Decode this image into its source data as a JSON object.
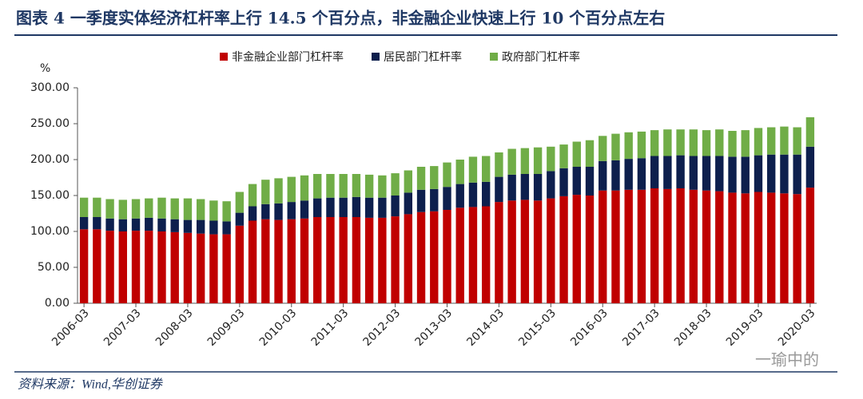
{
  "chart_data": {
    "type": "bar",
    "stacked": true,
    "title": "图表 4 一季度实体经济杠杆率上行 14.5 个百分点，非金融企业快速上行 10 个百分点左右",
    "y_label": "%",
    "source": "资料来源：Wind,华创证券",
    "watermark": "一瑜中的",
    "categories": [
      "2006-03",
      null,
      null,
      null,
      "2007-03",
      null,
      null,
      null,
      "2008-03",
      null,
      null,
      null,
      "2009-03",
      null,
      null,
      null,
      "2010-03",
      null,
      null,
      null,
      "2011-03",
      null,
      null,
      null,
      "2012-03",
      null,
      null,
      null,
      "2013-03",
      null,
      null,
      null,
      "2014-03",
      null,
      null,
      null,
      "2015-03",
      null,
      null,
      null,
      "2016-03",
      null,
      null,
      null,
      "2017-03",
      null,
      null,
      null,
      "2018-03",
      null,
      null,
      null,
      "2019-03",
      null,
      null,
      null,
      "2020-03"
    ],
    "series": [
      {
        "name": "非金融企业部门杠杆率",
        "color": "#c00000",
        "values": [
          103,
          103,
          101,
          100,
          101,
          101,
          100,
          99,
          98,
          97,
          96,
          96,
          108,
          115,
          117,
          116,
          117,
          118,
          120,
          120,
          120,
          120,
          119,
          119,
          121,
          124,
          127,
          128,
          130,
          133,
          134,
          135,
          141,
          143,
          144,
          143,
          146,
          149,
          151,
          150,
          157,
          157,
          158,
          158,
          160,
          159,
          160,
          158,
          157,
          156,
          154,
          153,
          155,
          154,
          153,
          152,
          161
        ]
      },
      {
        "name": "居民部门杠杆率",
        "color": "#0d1f4d",
        "values": [
          17,
          17,
          17,
          17,
          17,
          18,
          18,
          18,
          18,
          19,
          19,
          18,
          18,
          20,
          21,
          23,
          24,
          25,
          26,
          27,
          27,
          28,
          28,
          28,
          29,
          30,
          31,
          31,
          32,
          33,
          34,
          34,
          35,
          36,
          36,
          37,
          38,
          39,
          39,
          40,
          41,
          42,
          43,
          44,
          45,
          46,
          46,
          47,
          48,
          49,
          50,
          51,
          51,
          53,
          54,
          55,
          57
        ]
      },
      {
        "name": "政府部门杠杆率",
        "color": "#70ad47",
        "values": [
          27,
          27,
          27,
          27,
          27,
          27,
          29,
          29,
          30,
          29,
          28,
          28,
          29,
          31,
          34,
          35,
          35,
          35,
          34,
          33,
          33,
          32,
          32,
          31,
          31,
          31,
          32,
          32,
          34,
          34,
          36,
          36,
          34,
          36,
          36,
          37,
          34,
          33,
          35,
          37,
          35,
          37,
          37,
          37,
          36,
          37,
          36,
          37,
          36,
          37,
          36,
          37,
          38,
          38,
          39,
          38,
          41
        ]
      }
    ],
    "ylim": [
      0,
      300
    ],
    "yticks": [
      {
        "value": 0,
        "label": "0.00"
      },
      {
        "value": 50,
        "label": "50.00"
      },
      {
        "value": 100,
        "label": "100.00"
      },
      {
        "value": 150,
        "label": "150.00"
      },
      {
        "value": 200,
        "label": "200.00"
      },
      {
        "value": 250,
        "label": "250.00"
      },
      {
        "value": 300,
        "label": "300.00"
      }
    ],
    "legend": "top"
  }
}
